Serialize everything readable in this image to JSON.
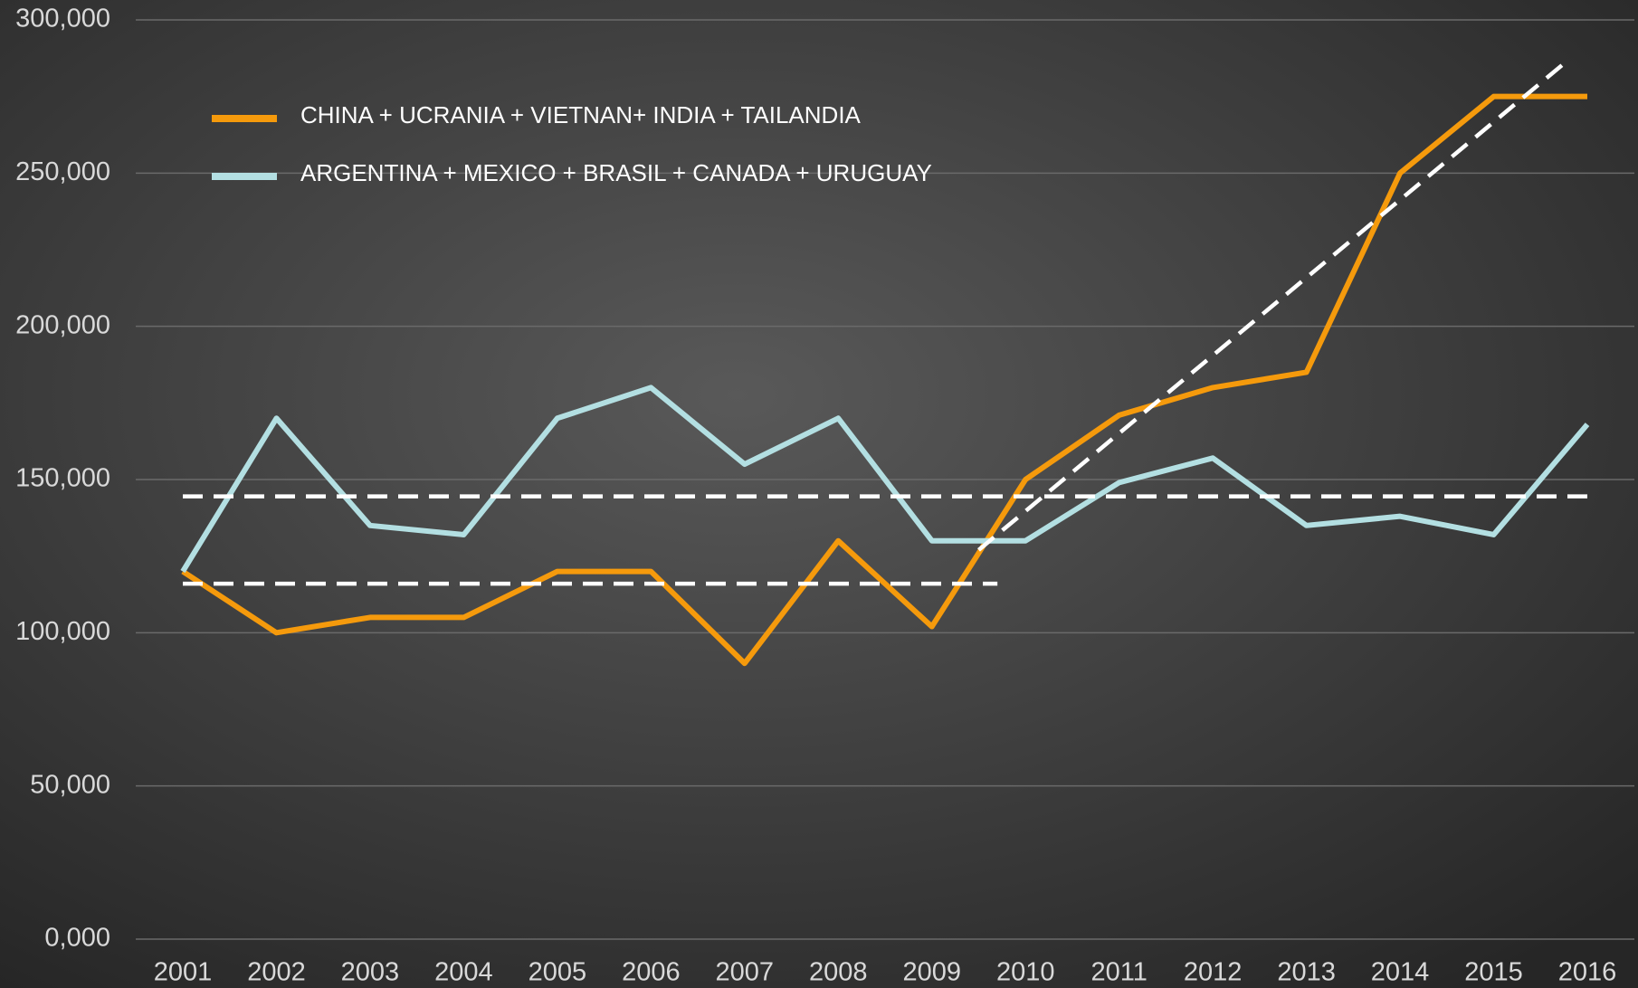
{
  "chart_data": {
    "type": "line",
    "x": [
      2001,
      2002,
      2003,
      2004,
      2005,
      2006,
      2007,
      2008,
      2009,
      2010,
      2011,
      2012,
      2013,
      2014,
      2015,
      2016
    ],
    "series": [
      {
        "name": "CHINA + UCRANIA + VIETNAN+ INDIA + TAILANDIA",
        "color": "#f59a0c",
        "values": [
          120,
          100,
          105,
          105,
          120,
          120,
          90,
          130,
          102,
          150,
          171,
          180,
          185,
          250,
          275,
          275
        ]
      },
      {
        "name": "ARGENTINA + MEXICO + BRASIL + CANADA + URUGUAY",
        "color": "#b3dfe2",
        "values": [
          120,
          170,
          135,
          132,
          170,
          180,
          155,
          170,
          130,
          130,
          149,
          157,
          135,
          138,
          132,
          168
        ]
      }
    ],
    "trend_lines": [
      {
        "x": [
          2001,
          2016
        ],
        "y": [
          144.5,
          144.5
        ]
      },
      {
        "x": [
          2001,
          2009.7
        ],
        "y": [
          116,
          116
        ]
      },
      {
        "x": [
          2009.5,
          2015.8
        ],
        "y": [
          127,
          287
        ]
      }
    ],
    "ylim": [
      0,
      300
    ],
    "yticks": [
      {
        "value": 0,
        "label": "0,000"
      },
      {
        "value": 50,
        "label": "50,000"
      },
      {
        "value": 100,
        "label": "100,000"
      },
      {
        "value": 150,
        "label": "150,000"
      },
      {
        "value": 200,
        "label": "200,000"
      },
      {
        "value": 250,
        "label": "250,000"
      },
      {
        "value": 300,
        "label": "300,000"
      }
    ],
    "grid": true,
    "legend": "top-left"
  }
}
